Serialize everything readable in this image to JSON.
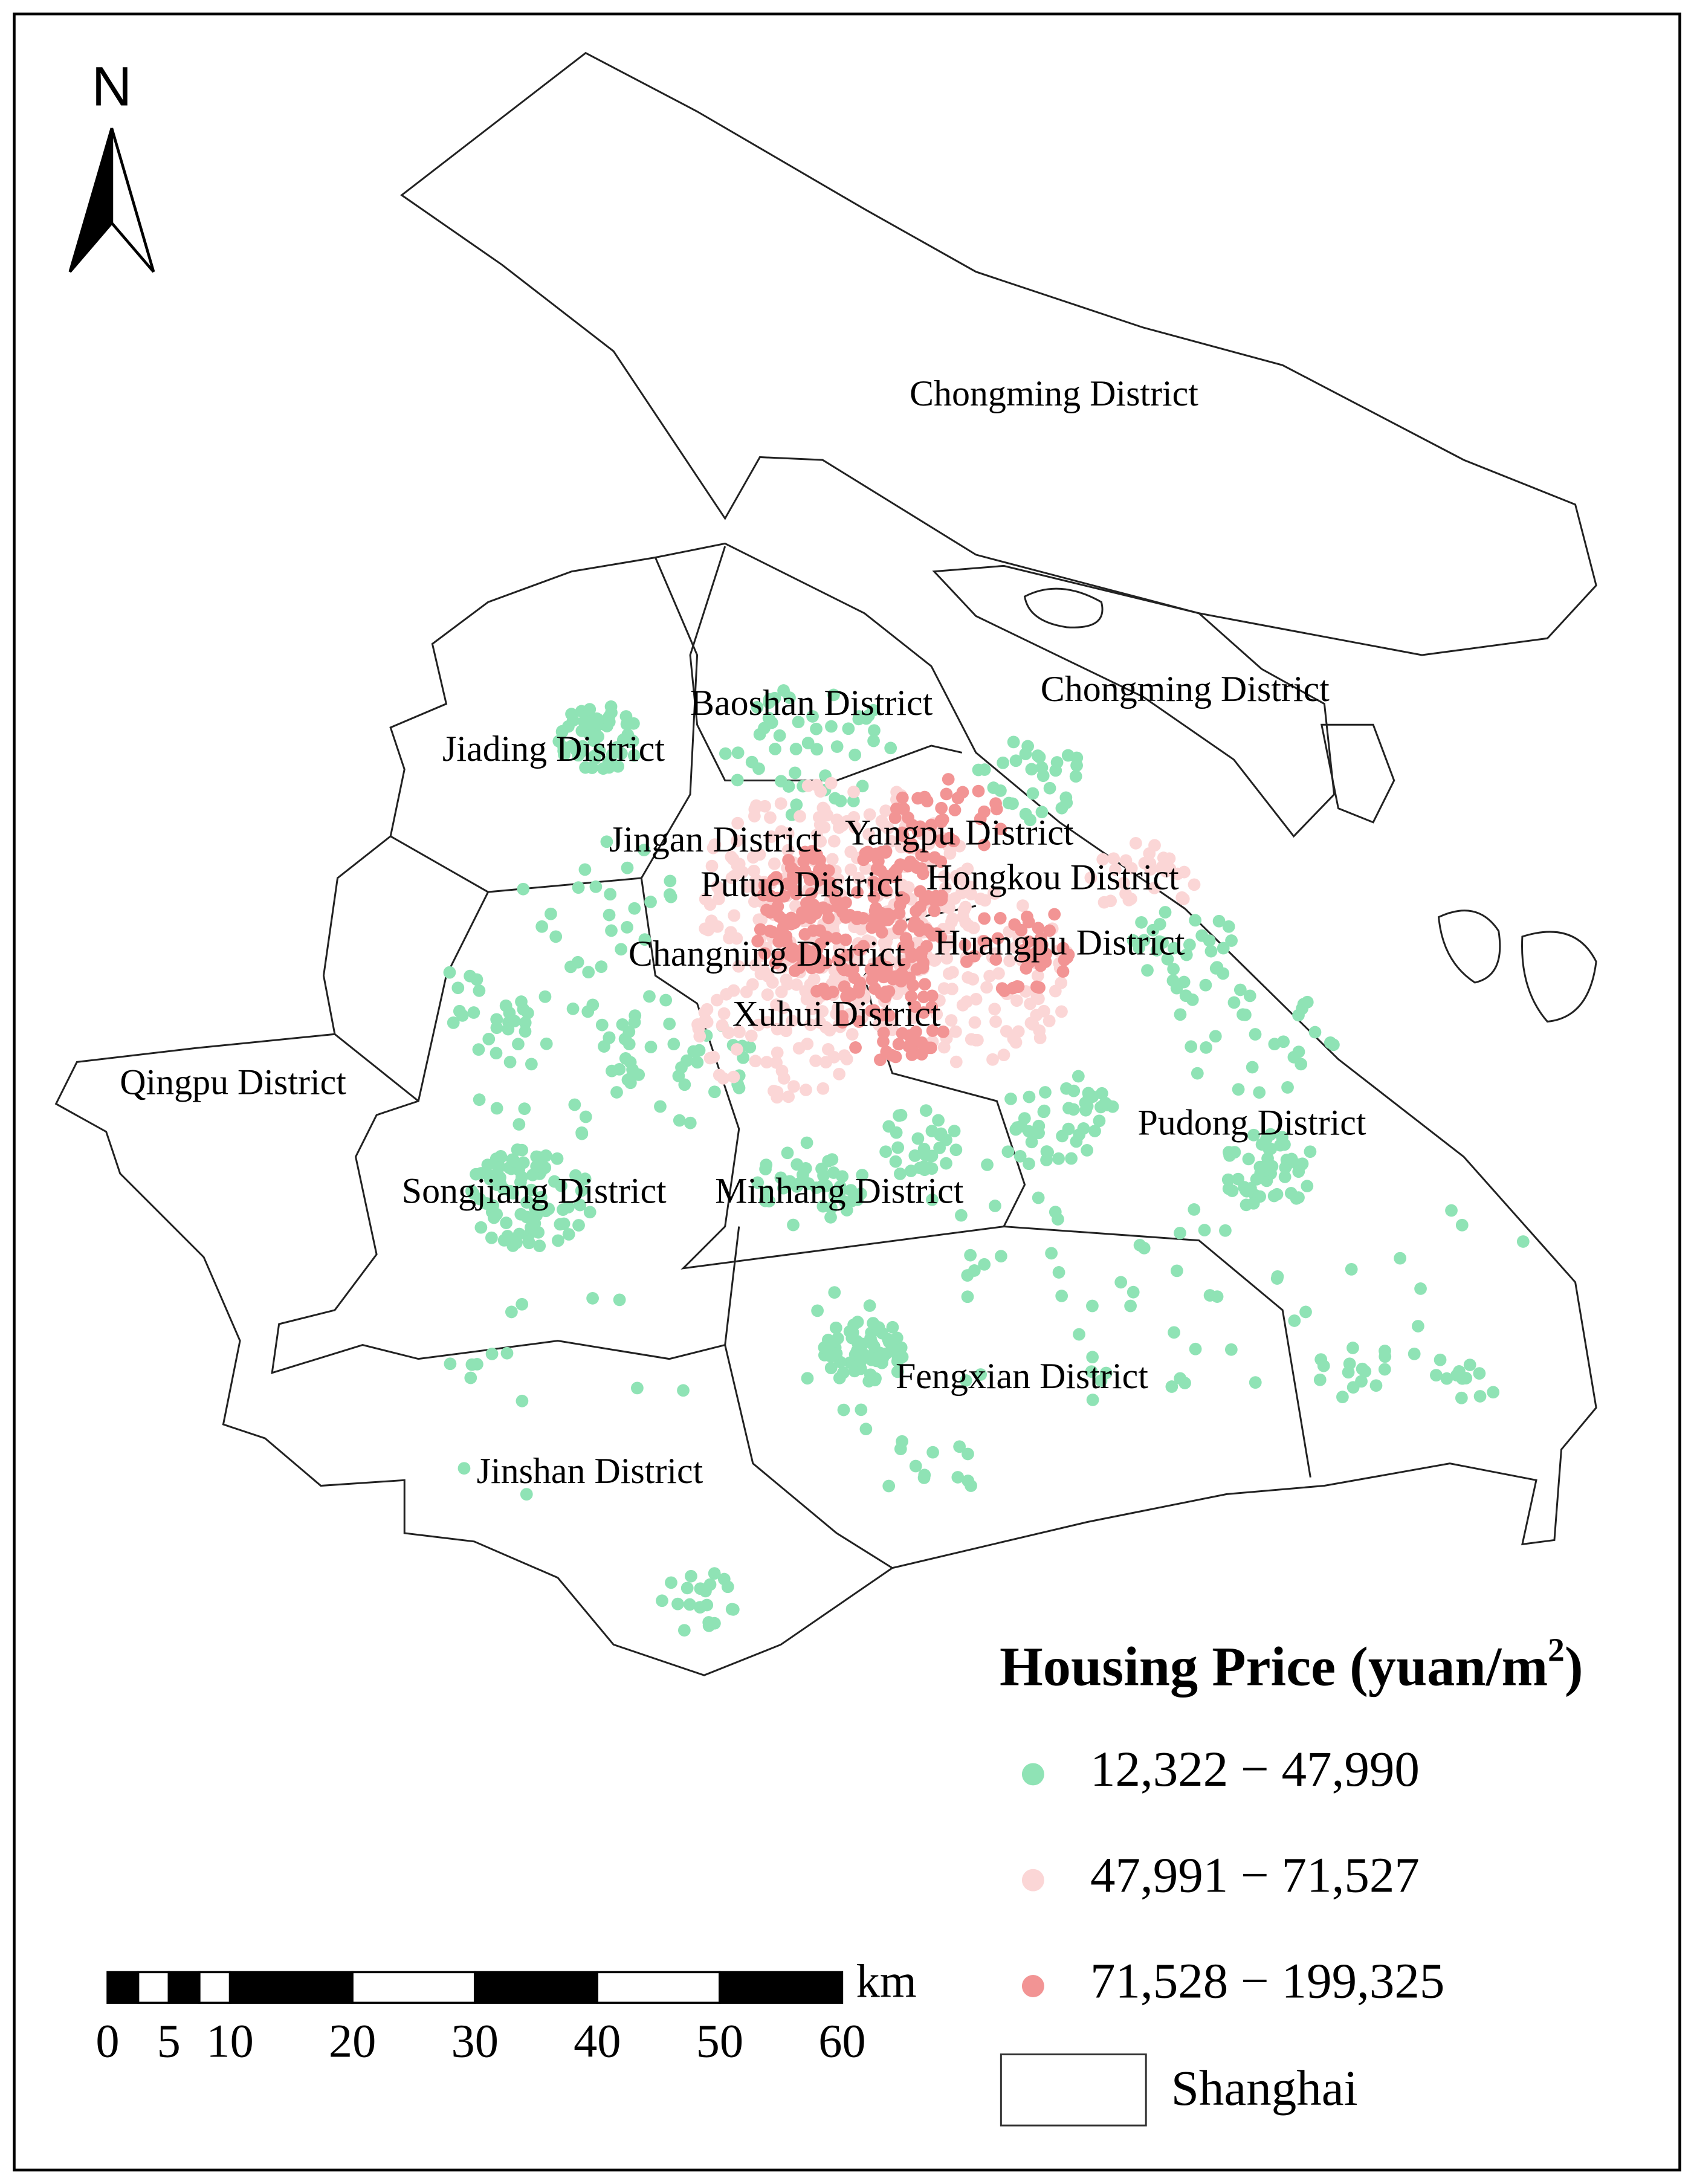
{
  "north_arrow": {
    "label": "N"
  },
  "districts": [
    {
      "label": "Chongming District"
    },
    {
      "label": "Chongming District"
    },
    {
      "label": "Baoshan District"
    },
    {
      "label": "Jiading District"
    },
    {
      "label": "Jingan District"
    },
    {
      "label": "Yangpu District"
    },
    {
      "label": "Putuo District"
    },
    {
      "label": "Hongkou District"
    },
    {
      "label": "Changning District"
    },
    {
      "label": "Huangpu District"
    },
    {
      "label": "Xuhui District"
    },
    {
      "label": "Qingpu District"
    },
    {
      "label": "Pudong District"
    },
    {
      "label": "Songjiang District"
    },
    {
      "label": "Minhang District"
    },
    {
      "label": "Fengxian District"
    },
    {
      "label": "Jinshan District"
    }
  ],
  "legend": {
    "title": "Housing Price (yuan/m",
    "title_sup": "2",
    "title_end": ")",
    "items": [
      {
        "label": "12,322 − 47,990",
        "color": "#8fe3b5"
      },
      {
        "label": "47,991 − 71,527",
        "color": "#fbd6d6"
      },
      {
        "label": "71,528 − 199,325",
        "color": "#f29494"
      }
    ],
    "boundary_label": "Shanghai"
  },
  "scale_bar": {
    "unit": "km",
    "ticks": [
      0,
      5,
      10,
      20,
      30,
      40,
      50,
      60
    ]
  }
}
